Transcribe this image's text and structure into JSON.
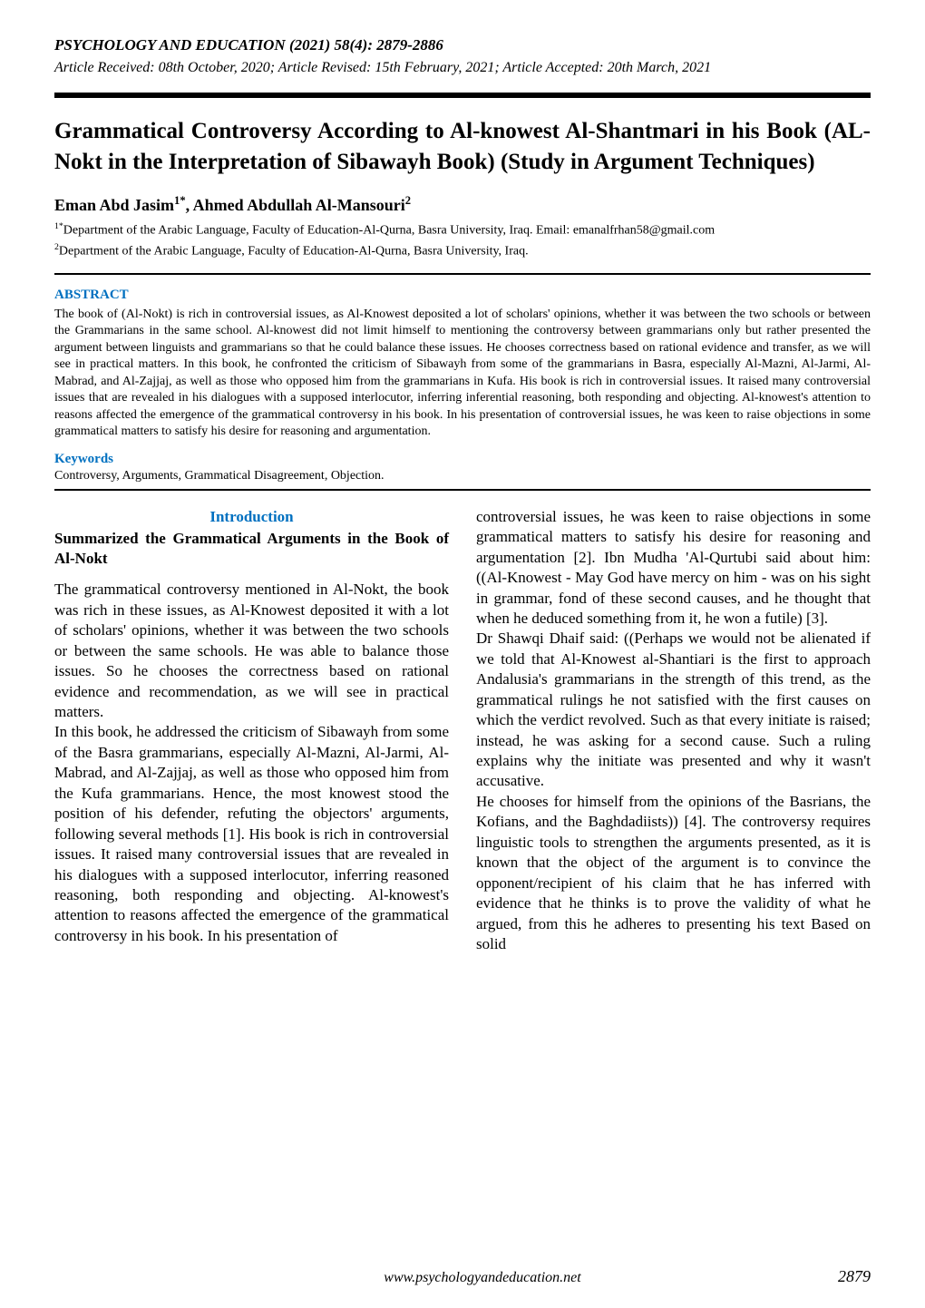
{
  "header": {
    "journal_line": "PSYCHOLOGY AND EDUCATION (2021) 58(4): 2879-2886",
    "dates_line": "Article Received: 08th October, 2020; Article Revised: 15th February, 2021; Article Accepted: 20th March, 2021"
  },
  "title": "Grammatical Controversy According to Al-knowest Al-Shantmari in his Book (AL-Nokt in the Interpretation of Sibawayh Book) (Study in Argument Techniques)",
  "authors_line_html": "Eman Abd Jasim<sup>1*</sup>, Ahmed Abdullah Al-Mansouri<sup>2</sup>",
  "affiliations": {
    "a1_html": "<sup>1*</sup>Department of the Arabic Language, Faculty of Education-Al-Qurna, Basra University, Iraq. Email: emanalfrhan58@gmail.com",
    "a2_html": "<sup>2</sup>Department of the Arabic Language, Faculty of Education-Al-Qurna, Basra University, Iraq."
  },
  "abstract": {
    "heading": "ABSTRACT",
    "text": "The book of (Al-Nokt) is rich in controversial issues, as Al-Knowest deposited a lot of scholars' opinions, whether it was between the two schools or between the Grammarians in the same school. Al-knowest did not limit himself to mentioning the controversy between grammarians only but rather presented the argument between linguists and grammarians so that he could balance these issues. He chooses correctness based on rational evidence and transfer, as we will see in practical matters. In this book, he confronted the criticism of Sibawayh from some of the grammarians in Basra, especially Al-Mazni, Al-Jarmi, Al-Mabrad, and Al-Zajjaj, as well as those who opposed him from the grammarians in Kufa. His book is rich in controversial issues. It raised many controversial issues that are revealed in his dialogues with a supposed interlocutor, inferring inferential reasoning, both responding and objecting. Al-knowest's attention to reasons affected the emergence of the grammatical controversy in his book. In his presentation of controversial issues, he was keen to raise objections in some grammatical matters to satisfy his desire for reasoning and argumentation."
  },
  "keywords": {
    "heading": "Keywords",
    "text": "Controversy, Arguments, Grammatical Disagreement, Objection."
  },
  "body": {
    "intro_heading": "Introduction",
    "section_heading": "Summarized the Grammatical Arguments in the Book of Al-Nokt",
    "left_col_p1": "The grammatical controversy mentioned in Al-Nokt, the book was rich in these issues, as Al-Knowest deposited it with a lot of scholars' opinions, whether it was between the two schools or between the same schools. He was able to balance those issues. So he chooses the correctness based on rational evidence and recommendation, as we will see in practical matters.",
    "left_col_p2": "In this book, he addressed the criticism of Sibawayh from some of the Basra grammarians, especially Al-Mazni, Al-Jarmi, Al-Mabrad, and Al-Zajjaj, as well as those who opposed him from the Kufa grammarians. Hence, the most knowest stood the position of his defender, refuting the objectors' arguments, following several methods [1]. His book is rich in controversial issues. It raised many controversial issues that are revealed in his dialogues with a supposed interlocutor, inferring reasoned reasoning, both responding and objecting. Al-knowest's attention to reasons affected the emergence of the grammatical controversy in his book. In his presentation of",
    "right_col_p1": "controversial issues, he was keen to raise objections in some grammatical matters to satisfy his desire for reasoning and argumentation [2]. Ibn Mudha 'Al-Qurtubi said about him: ((Al-Knowest - May God have mercy on him - was on his sight in grammar, fond of these second causes, and he thought that when he deduced something from it, he won a futile) [3].",
    "right_col_p2": "Dr Shawqi Dhaif said: ((Perhaps we would not be alienated if we told that Al-Knowest al-Shantiari is the first to approach Andalusia's grammarians in the strength of this trend, as the grammatical rulings he not satisfied with the first causes on which the verdict revolved. Such as that every initiate is raised; instead, he was asking for a second cause. Such a ruling explains why the initiate was presented and why it wasn't accusative.",
    "right_col_p3": "He chooses for himself from the opinions of the Basrians, the Kofians, and the Baghdadiists)) [4]. The controversy requires linguistic tools to strengthen the arguments presented, as it is known that the object of the argument is to convince the opponent/recipient of his claim that he has inferred with evidence that he thinks is to prove the validity of what he argued, from this he adheres to presenting his text Based on solid"
  },
  "footer": {
    "url": "www.psychologyandeducation.net",
    "page": "2879"
  },
  "colors": {
    "heading_blue": "#0070c0",
    "text_black": "#000000",
    "background": "#ffffff"
  },
  "fonts": {
    "family": "Times New Roman",
    "title_size_pt": 19,
    "body_size_pt": 13,
    "abstract_size_pt": 10.5
  }
}
